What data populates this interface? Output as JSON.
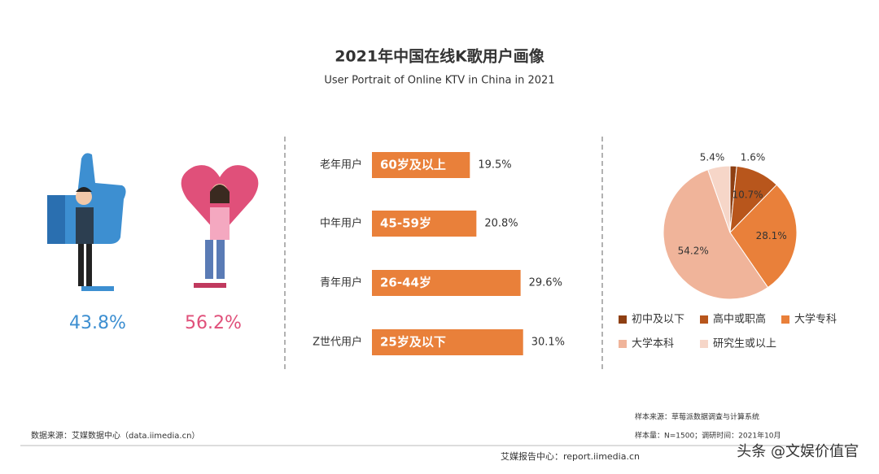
{
  "title": "2021年中国在线K歌用户画像",
  "subtitle": "User Portrait of Online KTV in China in 2021",
  "chart_data": [
    {
      "type": "stat",
      "values": [
        43.8,
        56.2
      ],
      "value_labels": [
        "43.8%",
        "56.2%"
      ],
      "colors": [
        "#3d8fd1",
        "#e0507a"
      ]
    },
    {
      "type": "bar",
      "categories": [
        "老年用户",
        "中年用户",
        "青年用户",
        "Z世代用户"
      ],
      "bar_labels": [
        "60岁及以上",
        "45-59岁",
        "26-44岁",
        "25岁及以下"
      ],
      "values": [
        19.5,
        20.8,
        29.6,
        30.1
      ],
      "value_labels": [
        "19.5%",
        "20.8%",
        "29.6%",
        "30.1%"
      ],
      "color": "#e9803a"
    },
    {
      "type": "pie",
      "categories": [
        "初中及以下",
        "高中或职高",
        "大学专科",
        "大学本科",
        "研究生或以上"
      ],
      "values": [
        1.6,
        10.7,
        28.1,
        54.2,
        5.4
      ],
      "value_labels": [
        "1.6%",
        "10.7%",
        "28.1%",
        "54.2%",
        "5.4%"
      ],
      "colors": [
        "#8e3f12",
        "#b8561c",
        "#e9803a",
        "#f0b49a",
        "#f6d6c8"
      ]
    }
  ],
  "source": "数据来源：艾媒数据中心（data.iimedia.cn）",
  "sample_source": "样本来源：草莓派数据调查与计算系统",
  "sample_size": "样本量：N=1500；调研时间：2021年10月",
  "report": "艾媒报告中心：report.iimedia.cn",
  "watermark": "头条 @文娱价值官"
}
